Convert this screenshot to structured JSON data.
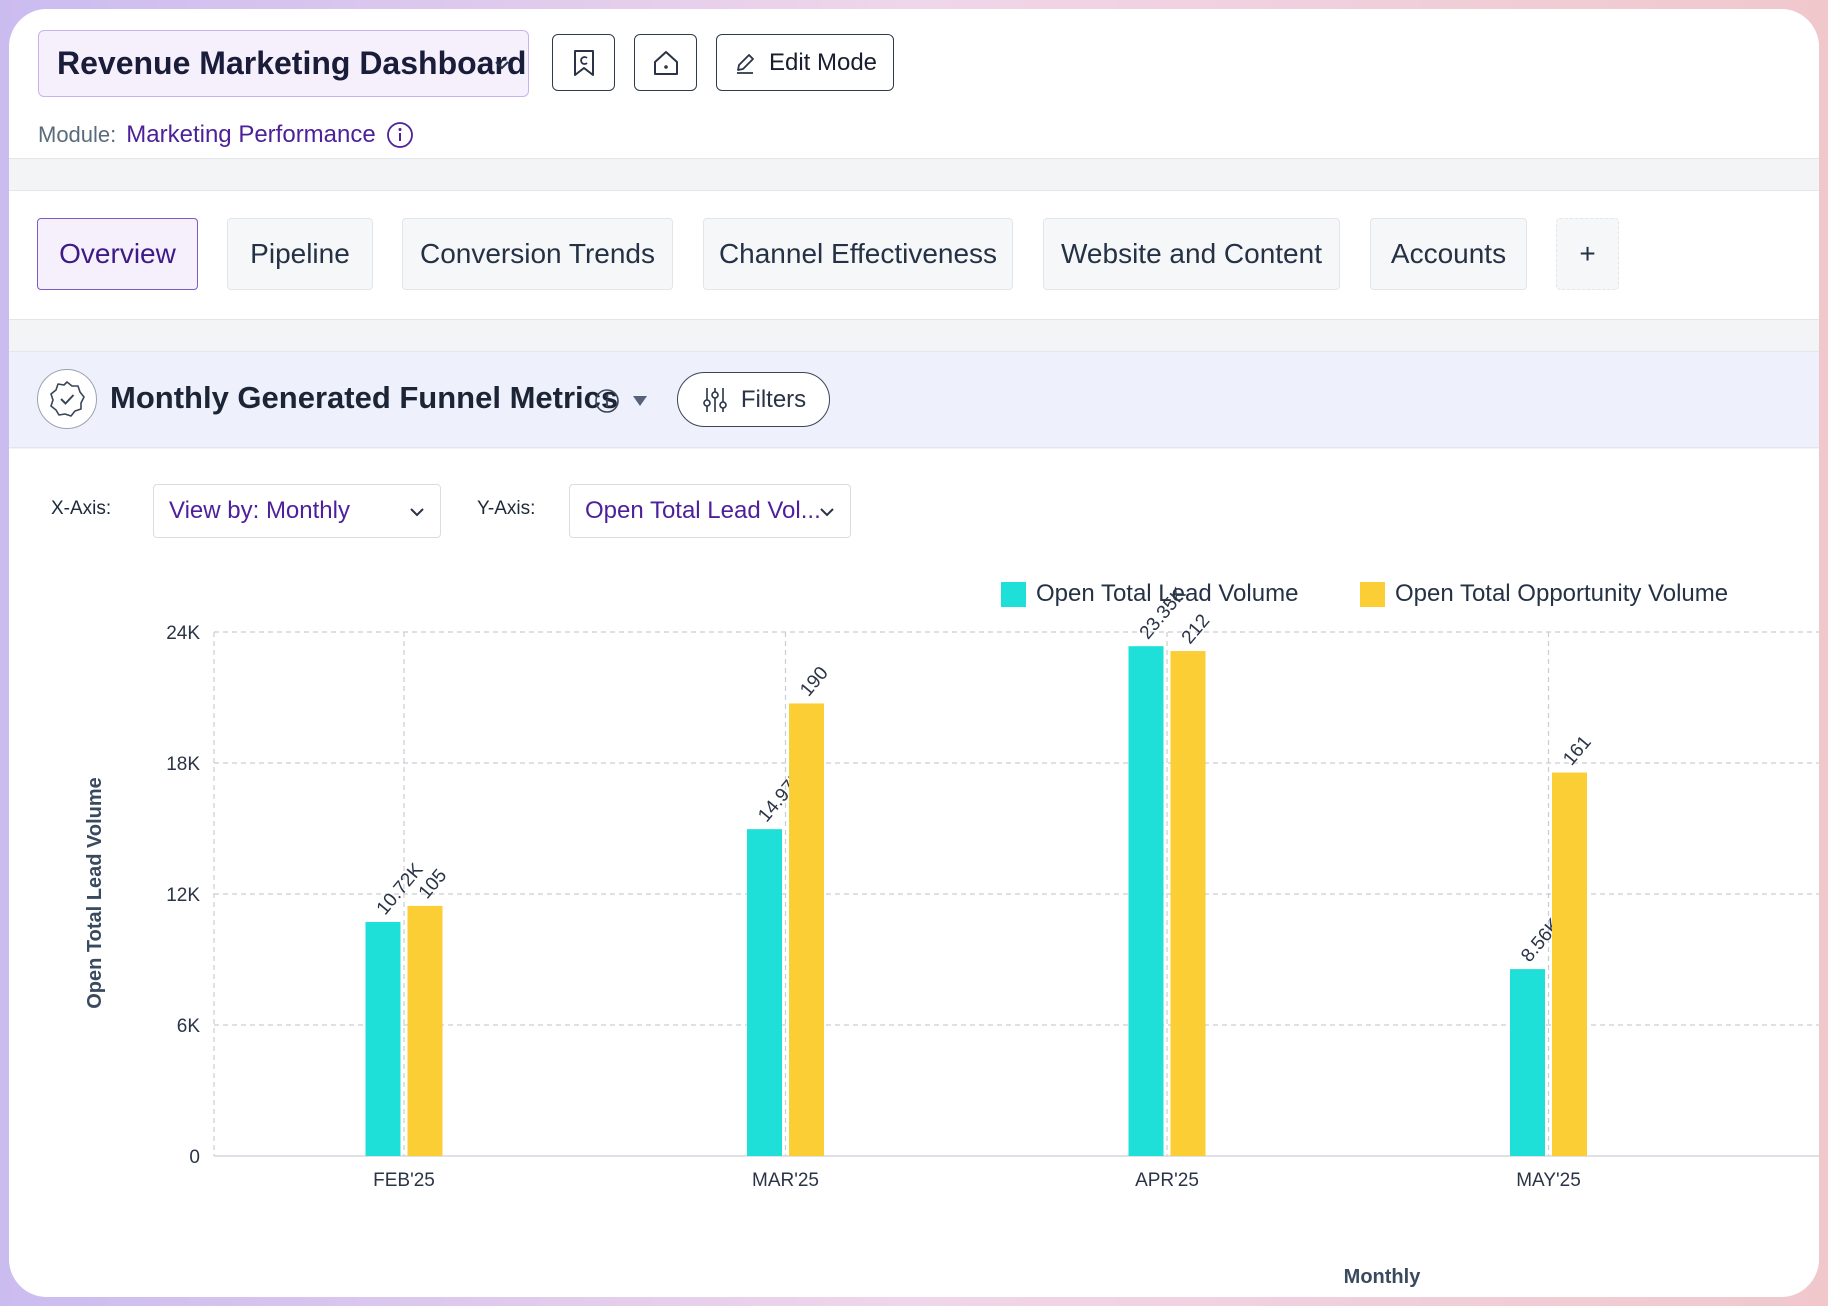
{
  "header": {
    "dashboard_title": "Revenue Marketing Dashboard",
    "edit_mode_label": "Edit Mode",
    "module_label": "Module:",
    "module_value": "Marketing Performance"
  },
  "tabs": [
    {
      "label": "Overview",
      "active": true
    },
    {
      "label": "Pipeline",
      "active": false
    },
    {
      "label": "Conversion Trends",
      "active": false
    },
    {
      "label": "Channel Effectiveness",
      "active": false
    },
    {
      "label": "Website and Content",
      "active": false
    },
    {
      "label": "Accounts",
      "active": false
    }
  ],
  "add_tab_label": "+",
  "widget": {
    "title": "Monthly Generated Funnel Metrics",
    "filters_label": "Filters",
    "x_axis_label": "X-Axis:",
    "x_axis_value": "View by: Monthly",
    "y_axis_label": "Y-Axis:",
    "y_axis_value": "Open Total Lead Vol..."
  },
  "colors": {
    "lead": "#1ee0d8",
    "opportunity": "#fbce35",
    "accent": "#4d2199"
  },
  "chart_data": {
    "type": "bar",
    "categories": [
      "FEB'25",
      "MAR'25",
      "APR'25",
      "MAY'25"
    ],
    "series": [
      {
        "name": "Open Total Lead Volume",
        "values": [
          10720,
          14970,
          23350,
          8560
        ],
        "labels": [
          "10.72K",
          "14.97K",
          "23.35K",
          "8.56K"
        ]
      },
      {
        "name": "Open Total Opportunity Volume",
        "values": [
          105,
          190,
          212,
          161
        ],
        "labels": [
          "105",
          "190",
          "212",
          "161"
        ]
      }
    ],
    "ylim": [
      0,
      24000
    ],
    "y2lim": [
      0,
      220
    ],
    "yticks": [
      0,
      6000,
      12000,
      18000,
      24000
    ],
    "ytick_labels": [
      "0",
      "6K",
      "12K",
      "18K",
      "24K"
    ],
    "xlabel": "Monthly",
    "ylabel": "Open Total Lead Volume",
    "grid": true,
    "legend": "top-right"
  }
}
